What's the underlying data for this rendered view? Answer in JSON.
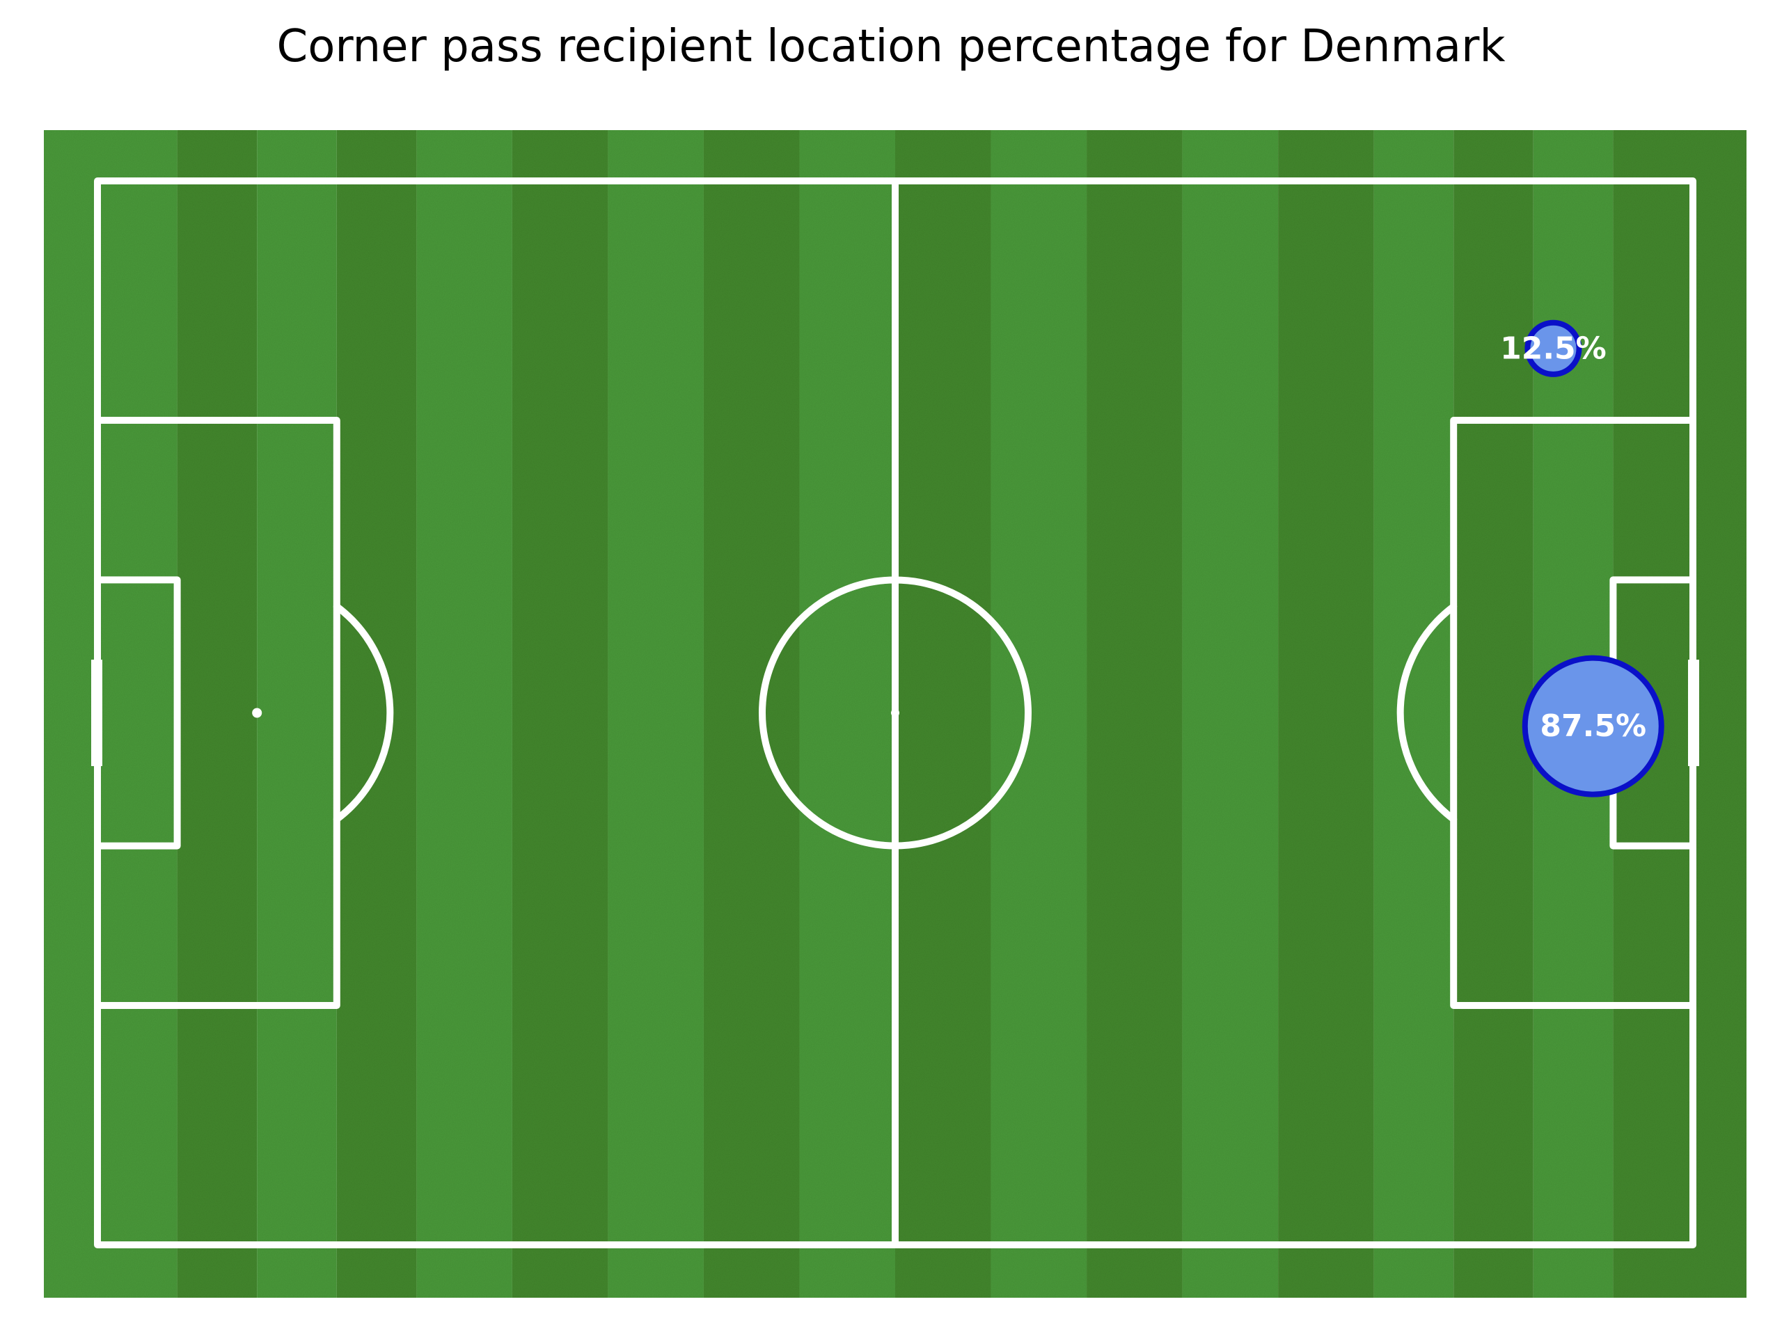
{
  "chart_data": {
    "type": "scatter",
    "title": "Corner pass recipient location percentage for Denmark",
    "pitch": {
      "length": 120,
      "width": 80
    },
    "colors": {
      "grass_light": "#4a9a3a",
      "grass_dark": "#43882d",
      "lines": "#ffffff",
      "bubble_fill": "#6a95ea",
      "bubble_edge": "#0a10c8",
      "label": "#ffffff"
    },
    "points": [
      {
        "x": 109.5,
        "y": 12.6,
        "value": 12.5,
        "label": "12.5%"
      },
      {
        "x": 112.5,
        "y": 41.0,
        "value": 87.5,
        "label": "87.5%"
      }
    ]
  }
}
